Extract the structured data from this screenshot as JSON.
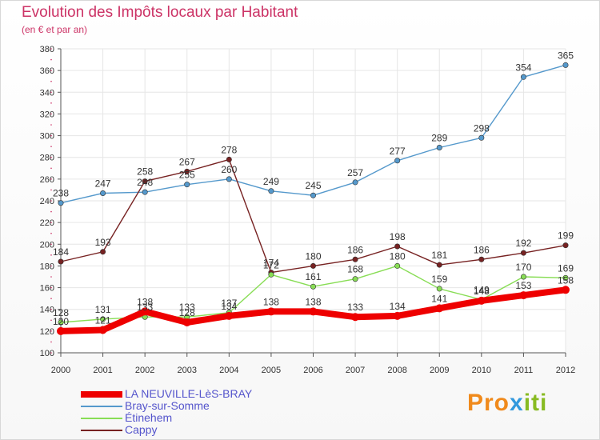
{
  "chart_data": {
    "type": "line",
    "title": "Evolution des Impôts locaux par Habitant",
    "subtitle": "(en € et par an)",
    "x": [
      "2000",
      "2001",
      "2002",
      "2003",
      "2004",
      "2005",
      "2006",
      "2007",
      "2008",
      "2009",
      "2010",
      "2011",
      "2012"
    ],
    "yticks": [
      100,
      120,
      140,
      160,
      180,
      200,
      220,
      240,
      260,
      280,
      300,
      320,
      340,
      360,
      380
    ],
    "ylim": [
      100,
      380
    ],
    "grid": true,
    "legend_position": "bottom-left",
    "series": [
      {
        "name": "Bray-sur-Somme",
        "color": "#5599cc",
        "values": [
          238,
          247,
          248,
          255,
          260,
          249,
          245,
          257,
          277,
          289,
          298,
          354,
          365
        ]
      },
      {
        "name": "Cappy",
        "color": "#772222",
        "values": [
          184,
          193,
          258,
          267,
          278,
          174,
          180,
          186,
          198,
          181,
          186,
          192,
          199
        ]
      },
      {
        "name": "Étinehem",
        "color": "#88dd55",
        "values": [
          128,
          131,
          133,
          133,
          137,
          172,
          161,
          168,
          180,
          159,
          149,
          170,
          169
        ]
      },
      {
        "name": "LA NEUVILLE-LèS-BRAY",
        "color": "#ee0000",
        "values": [
          120,
          121,
          138,
          128,
          134,
          138,
          138,
          133,
          134,
          141,
          148,
          153,
          158
        ]
      }
    ],
    "legend_order": [
      "LA NEUVILLE-LèS-BRAY",
      "Bray-sur-Somme",
      "Étinehem",
      "Cappy"
    ]
  },
  "logo": {
    "p1": "Pro",
    "p2": "x",
    "p3": "iti"
  }
}
